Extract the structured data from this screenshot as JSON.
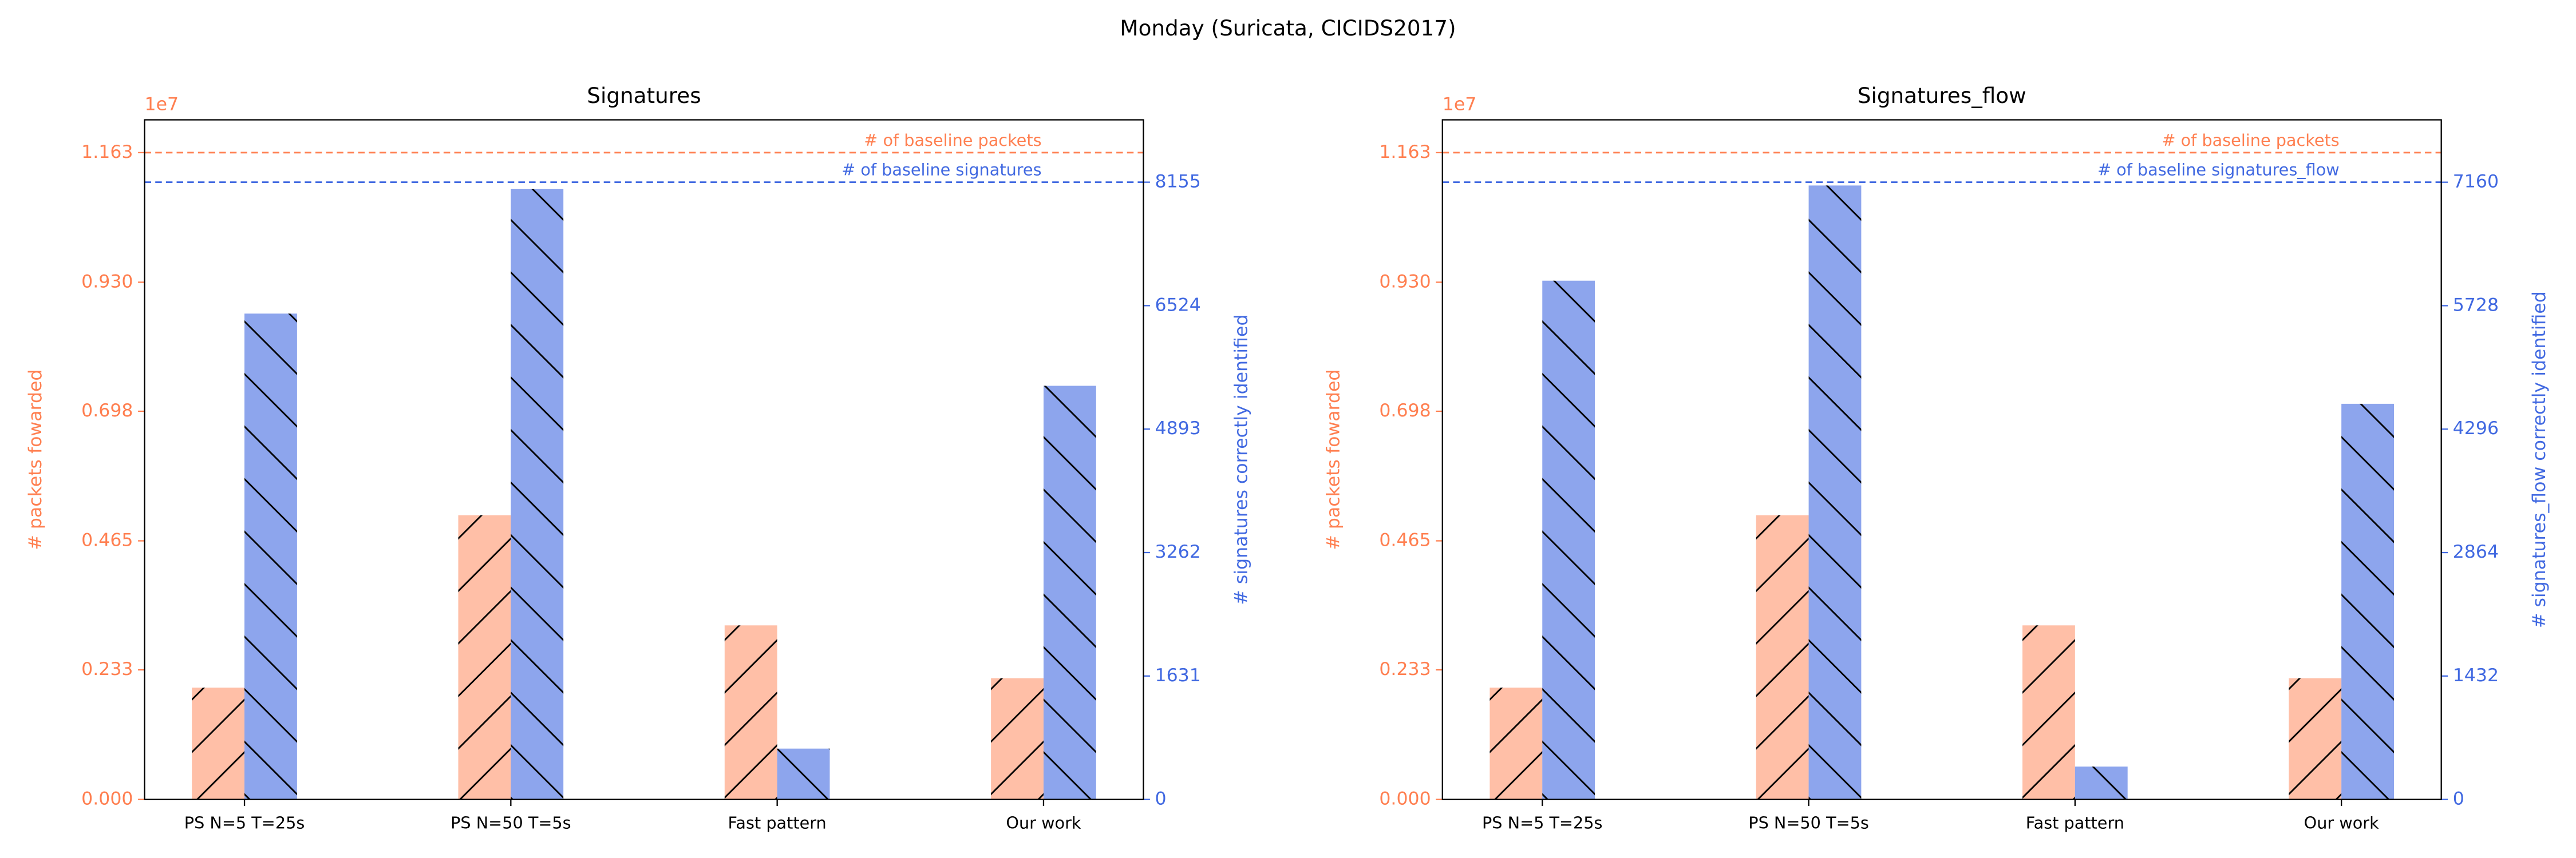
{
  "suptitle": "Monday (Suricata, CICIDS2017)",
  "chart_data": [
    {
      "type": "bar",
      "title": "Signatures",
      "categories": [
        "PS N=5 T=25s",
        "PS N=50 T=5s",
        "Fast pattern",
        "Our work"
      ],
      "ylabel": "# packets fowarded",
      "y2label": "# signatures correctly identified",
      "offset_label": "1e7",
      "ycolor": "#ff7f50",
      "y2color": "#4169e1",
      "ylim": [
        0,
        1.222
      ],
      "yticks": [
        {
          "value": 0,
          "label": "0.000"
        },
        0.233,
        0.465,
        0.698,
        {
          "value": 0.93,
          "label": "0.930"
        },
        1.163
      ],
      "y2lim": [
        0,
        8979
      ],
      "y2ticks": [
        0,
        1631,
        3262,
        4893,
        6524,
        8155
      ],
      "series": [
        {
          "color": "#ff7f50",
          "alpha": 0.5,
          "hatch": "//",
          "axis": "y",
          "values": [
            0.201,
            0.511,
            0.313,
            0.218
          ]
        },
        {
          "color": "#4169e1",
          "alpha": 0.6,
          "hatch": "\\\\",
          "axis": "y2",
          "values": [
            6419,
            8068,
            672,
            5465
          ]
        }
      ],
      "hlines": [
        {
          "value": 1.163,
          "label": "# of baseline packets",
          "color": "#ff7f50",
          "axis": "y"
        },
        {
          "value": 8155,
          "label": "# of baseline signatures",
          "color": "#4169e1",
          "axis": "y2"
        }
      ]
    },
    {
      "type": "bar",
      "title": "Signatures_flow",
      "categories": [
        "PS N=5 T=25s",
        "PS N=50 T=5s",
        "Fast pattern",
        "Our work"
      ],
      "ylabel": "# packets fowarded",
      "y2label": "# signatures_flow correctly identified",
      "offset_label": "1e7",
      "ycolor": "#ff7f50",
      "y2color": "#4169e1",
      "ylim": [
        0,
        1.222
      ],
      "yticks": [
        {
          "value": 0,
          "label": "0.000"
        },
        0.233,
        0.465,
        0.698,
        {
          "value": 0.93,
          "label": "0.930"
        },
        1.163
      ],
      "y2lim": [
        0,
        7884
      ],
      "y2ticks": [
        0,
        1432,
        2864,
        4296,
        5728,
        7160
      ],
      "series": [
        {
          "color": "#ff7f50",
          "alpha": 0.5,
          "hatch": "//",
          "axis": "y",
          "values": [
            0.201,
            0.511,
            0.313,
            0.218
          ]
        },
        {
          "color": "#4169e1",
          "alpha": 0.6,
          "hatch": "\\\\",
          "axis": "y2",
          "values": [
            6018,
            7122,
            381,
            4590
          ]
        }
      ],
      "hlines": [
        {
          "value": 1.163,
          "label": "# of baseline packets",
          "color": "#ff7f50",
          "axis": "y"
        },
        {
          "value": 7160,
          "label": "# of baseline signatures_flow",
          "color": "#4169e1",
          "axis": "y2"
        }
      ]
    }
  ]
}
